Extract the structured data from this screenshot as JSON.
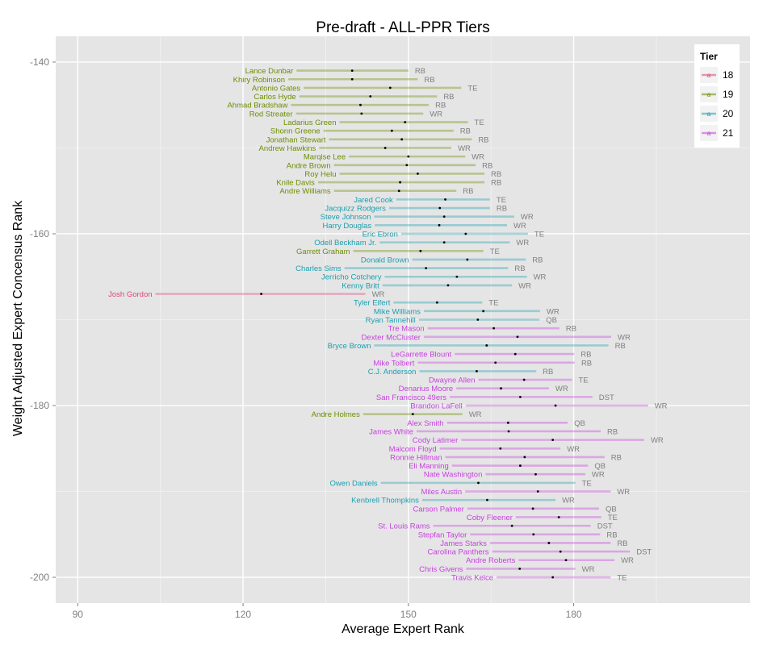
{
  "chart_data": {
    "type": "errorbar",
    "title": "Pre-draft - ALL-PPR Tiers",
    "xlabel": "Average Expert Rank",
    "ylabel": "Weight Adjusted Expert Concensus Rank",
    "xlim": [
      86,
      212
    ],
    "ylim": [
      -203,
      -137
    ],
    "xticks": [
      90,
      120,
      150,
      180
    ],
    "yticks": [
      -140,
      -160,
      -180,
      -200
    ],
    "legend": {
      "title": "Tier",
      "position": "top-right",
      "entries": [
        {
          "label": "18",
          "color": "#e0447c"
        },
        {
          "label": "19",
          "color": "#6b8e00"
        },
        {
          "label": "20",
          "color": "#1aa0b0"
        },
        {
          "label": "21",
          "color": "#c740e0"
        }
      ]
    },
    "points": [
      {
        "name": "Lance Dunbar",
        "pos": "RB",
        "tier": "19",
        "rank": -141,
        "avg": 139.8,
        "low": 129.7,
        "high": 150
      },
      {
        "name": "Khiry Robinson",
        "pos": "RB",
        "tier": "19",
        "rank": -142,
        "avg": 139.8,
        "low": 128.2,
        "high": 151.7
      },
      {
        "name": "Antonio Gates",
        "pos": "TE",
        "tier": "19",
        "rank": -143,
        "avg": 146.7,
        "low": 131,
        "high": 159.6
      },
      {
        "name": "Carlos Hyde",
        "pos": "RB",
        "tier": "19",
        "rank": -144,
        "avg": 143.1,
        "low": 130.2,
        "high": 155.2
      },
      {
        "name": "Ahmad Bradshaw",
        "pos": "RB",
        "tier": "19",
        "rank": -145,
        "avg": 141.3,
        "low": 128.7,
        "high": 153.7
      },
      {
        "name": "Rod Streater",
        "pos": "WR",
        "tier": "19",
        "rank": -146,
        "avg": 141.5,
        "low": 129.6,
        "high": 152.7
      },
      {
        "name": "Ladarius Green",
        "pos": "TE",
        "tier": "19",
        "rank": -147,
        "avg": 149.4,
        "low": 137.5,
        "high": 160.8
      },
      {
        "name": "Shonn Greene",
        "pos": "RB",
        "tier": "19",
        "rank": -148,
        "avg": 147,
        "low": 134.6,
        "high": 158.2
      },
      {
        "name": "Jonathan Stewart",
        "pos": "RB",
        "tier": "19",
        "rank": -149,
        "avg": 148.8,
        "low": 135.6,
        "high": 161.5
      },
      {
        "name": "Andrew Hawkins",
        "pos": "WR",
        "tier": "19",
        "rank": -150,
        "avg": 145.8,
        "low": 133.8,
        "high": 157.8
      },
      {
        "name": "Marqise Lee",
        "pos": "WR",
        "tier": "19",
        "rank": -151,
        "avg": 150,
        "low": 139.2,
        "high": 160.3
      },
      {
        "name": "Andre Brown",
        "pos": "RB",
        "tier": "19",
        "rank": -152,
        "avg": 149.7,
        "low": 136.5,
        "high": 162.2
      },
      {
        "name": "Roy Helu",
        "pos": "RB",
        "tier": "19",
        "rank": -153,
        "avg": 151.7,
        "low": 137.5,
        "high": 163.8
      },
      {
        "name": "Knile Davis",
        "pos": "RB",
        "tier": "19",
        "rank": -154,
        "avg": 148.5,
        "low": 133.6,
        "high": 163.8
      },
      {
        "name": "Andre Williams",
        "pos": "RB",
        "tier": "19",
        "rank": -155,
        "avg": 148.3,
        "low": 136.5,
        "high": 158.7
      },
      {
        "name": "Jared Cook",
        "pos": "TE",
        "tier": "20",
        "rank": -156,
        "avg": 156.7,
        "low": 147.8,
        "high": 164.8
      },
      {
        "name": "Jacquizz Rodgers",
        "pos": "RB",
        "tier": "20",
        "rank": -157,
        "avg": 155.7,
        "low": 146.5,
        "high": 164.8
      },
      {
        "name": "Steve Johnson",
        "pos": "WR",
        "tier": "20",
        "rank": -158,
        "avg": 156.5,
        "low": 143.8,
        "high": 169.2
      },
      {
        "name": "Harry Douglas",
        "pos": "WR",
        "tier": "20",
        "rank": -159,
        "avg": 155.6,
        "low": 143.9,
        "high": 167.9
      },
      {
        "name": "Eric Ebron",
        "pos": "TE",
        "tier": "20",
        "rank": -160,
        "avg": 160.4,
        "low": 148.7,
        "high": 171.7
      },
      {
        "name": "Odell Beckham Jr.",
        "pos": "WR",
        "tier": "20",
        "rank": -161,
        "avg": 156.5,
        "low": 144.8,
        "high": 168.4
      },
      {
        "name": "Garrett Graham",
        "pos": "TE",
        "tier": "19",
        "rank": -162,
        "avg": 152.2,
        "low": 140,
        "high": 163.6
      },
      {
        "name": "Donald Brown",
        "pos": "RB",
        "tier": "20",
        "rank": -163,
        "avg": 160.7,
        "low": 150.7,
        "high": 171.3
      },
      {
        "name": "Charles Sims",
        "pos": "RB",
        "tier": "20",
        "rank": -164,
        "avg": 153.2,
        "low": 138.4,
        "high": 168.1
      },
      {
        "name": "Jerricho Cotchery",
        "pos": "WR",
        "tier": "20",
        "rank": -165,
        "avg": 158.8,
        "low": 145.7,
        "high": 171.5
      },
      {
        "name": "Kenny Britt",
        "pos": "WR",
        "tier": "20",
        "rank": -166,
        "avg": 157.2,
        "low": 145.3,
        "high": 168.8
      },
      {
        "name": "Josh Gordon",
        "pos": "WR",
        "tier": "18",
        "rank": -167,
        "avg": 123.3,
        "low": 104.1,
        "high": 142.2
      },
      {
        "name": "Tyler Eifert",
        "pos": "TE",
        "tier": "20",
        "rank": -168,
        "avg": 155.2,
        "low": 147.3,
        "high": 163.4
      },
      {
        "name": "Mike Williams",
        "pos": "WR",
        "tier": "20",
        "rank": -169,
        "avg": 163.6,
        "low": 152.8,
        "high": 173.9
      },
      {
        "name": "Ryan Tannehill",
        "pos": "QB",
        "tier": "20",
        "rank": -170,
        "avg": 162.6,
        "low": 151.9,
        "high": 173.8
      },
      {
        "name": "Tre Mason",
        "pos": "RB",
        "tier": "21",
        "rank": -171,
        "avg": 165.5,
        "low": 153.5,
        "high": 177.4
      },
      {
        "name": "Dexter McCluster",
        "pos": "WR",
        "tier": "21",
        "rank": -172,
        "avg": 169.8,
        "low": 152.8,
        "high": 186.8
      },
      {
        "name": "Bryce Brown",
        "pos": "RB",
        "tier": "20",
        "rank": -173,
        "avg": 164.2,
        "low": 143.8,
        "high": 186.3
      },
      {
        "name": "LeGarrette Blount",
        "pos": "RB",
        "tier": "21",
        "rank": -174,
        "avg": 169.4,
        "low": 158.4,
        "high": 180.1
      },
      {
        "name": "Mike Tolbert",
        "pos": "RB",
        "tier": "21",
        "rank": -175,
        "avg": 165.8,
        "low": 151.7,
        "high": 180.2
      },
      {
        "name": "C.J. Anderson",
        "pos": "RB",
        "tier": "20",
        "rank": -176,
        "avg": 162.4,
        "low": 152,
        "high": 173.2
      },
      {
        "name": "Dwayne Allen",
        "pos": "TE",
        "tier": "21",
        "rank": -177,
        "avg": 171,
        "low": 162.7,
        "high": 179.7
      },
      {
        "name": "Denarius Moore",
        "pos": "WR",
        "tier": "21",
        "rank": -178,
        "avg": 166.8,
        "low": 158.7,
        "high": 175.5
      },
      {
        "name": "San Francisco 49ers",
        "pos": "DST",
        "tier": "21",
        "rank": -179,
        "avg": 170.3,
        "low": 157.5,
        "high": 183.4
      },
      {
        "name": "Brandon LaFell",
        "pos": "WR",
        "tier": "21",
        "rank": -180,
        "avg": 176.7,
        "low": 160.4,
        "high": 193.5
      },
      {
        "name": "Andre Holmes",
        "pos": "WR",
        "tier": "19",
        "rank": -181,
        "avg": 150.8,
        "low": 141.8,
        "high": 159.8
      },
      {
        "name": "Alex Smith",
        "pos": "QB",
        "tier": "21",
        "rank": -182,
        "avg": 168.1,
        "low": 157,
        "high": 178.9
      },
      {
        "name": "James White",
        "pos": "RB",
        "tier": "21",
        "rank": -183,
        "avg": 168.2,
        "low": 151.5,
        "high": 184.9
      },
      {
        "name": "Cody Latimer",
        "pos": "WR",
        "tier": "21",
        "rank": -184,
        "avg": 176.2,
        "low": 159.6,
        "high": 192.8
      },
      {
        "name": "Malcom Floyd",
        "pos": "WR",
        "tier": "21",
        "rank": -185,
        "avg": 166.7,
        "low": 155.7,
        "high": 177.6
      },
      {
        "name": "Ronnie Hillman",
        "pos": "RB",
        "tier": "21",
        "rank": -186,
        "avg": 171.1,
        "low": 156.7,
        "high": 185.6
      },
      {
        "name": "Eli Manning",
        "pos": "QB",
        "tier": "21",
        "rank": -187,
        "avg": 170.3,
        "low": 157.9,
        "high": 182.6
      },
      {
        "name": "Nate Washington",
        "pos": "WR",
        "tier": "21",
        "rank": -188,
        "avg": 173.1,
        "low": 164,
        "high": 182.1
      },
      {
        "name": "Owen Daniels",
        "pos": "TE",
        "tier": "20",
        "rank": -189,
        "avg": 162.7,
        "low": 145,
        "high": 180.3
      },
      {
        "name": "Miles Austin",
        "pos": "WR",
        "tier": "21",
        "rank": -190,
        "avg": 173.5,
        "low": 160.3,
        "high": 186.7
      },
      {
        "name": "Kenbrell Thompkins",
        "pos": "WR",
        "tier": "20",
        "rank": -191,
        "avg": 164.3,
        "low": 152.5,
        "high": 176.7
      },
      {
        "name": "Carson Palmer",
        "pos": "QB",
        "tier": "21",
        "rank": -192,
        "avg": 172.6,
        "low": 160.7,
        "high": 184.6
      },
      {
        "name": "Coby Fleener",
        "pos": "TE",
        "tier": "21",
        "rank": -193,
        "avg": 177.3,
        "low": 169.5,
        "high": 185
      },
      {
        "name": "St. Louis Rams",
        "pos": "DST",
        "tier": "21",
        "rank": -194,
        "avg": 168.8,
        "low": 154.5,
        "high": 183.1
      },
      {
        "name": "Stepfan Taylor",
        "pos": "RB",
        "tier": "21",
        "rank": -195,
        "avg": 172.7,
        "low": 161.2,
        "high": 184.8
      },
      {
        "name": "James Starks",
        "pos": "RB",
        "tier": "21",
        "rank": -196,
        "avg": 175.5,
        "low": 164.8,
        "high": 186.7
      },
      {
        "name": "Carolina Panthers",
        "pos": "DST",
        "tier": "21",
        "rank": -197,
        "avg": 177.6,
        "low": 165.2,
        "high": 190.2
      },
      {
        "name": "Andre Roberts",
        "pos": "WR",
        "tier": "21",
        "rank": -198,
        "avg": 178.6,
        "low": 170,
        "high": 187.4
      },
      {
        "name": "Chris Givens",
        "pos": "WR",
        "tier": "21",
        "rank": -199,
        "avg": 170.2,
        "low": 160.5,
        "high": 180.3
      },
      {
        "name": "Travis Kelce",
        "pos": "TE",
        "tier": "21",
        "rank": -200,
        "avg": 176.2,
        "low": 166,
        "high": 186.7
      }
    ]
  }
}
